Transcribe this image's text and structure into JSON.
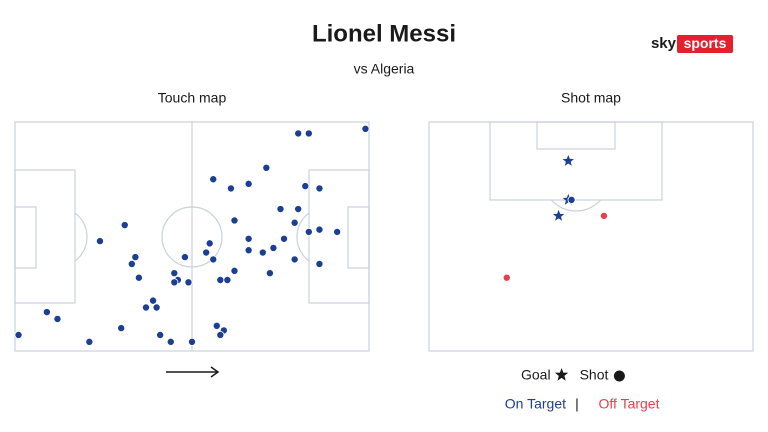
{
  "title": "Lionel Messi",
  "subtitle": "vs Algeria",
  "logo": {
    "brand": "sky",
    "product": "sports"
  },
  "chart_data": [
    {
      "type": "scatter",
      "title": "Touch map",
      "xlim": [
        0,
        100
      ],
      "ylim": [
        0,
        100
      ],
      "series": [
        {
          "name": null,
          "color": "#1c3f94",
          "x": [
            80,
            83,
            99,
            71,
            82,
            86,
            61,
            66,
            56,
            31,
            24,
            62,
            75,
            80,
            79,
            76,
            83,
            86,
            91,
            66,
            66,
            70,
            73,
            79,
            86,
            55,
            54,
            48,
            56,
            34,
            33,
            35,
            45,
            46,
            45,
            49,
            62,
            58,
            60,
            72,
            39,
            37,
            40,
            9,
            12,
            30,
            57,
            59,
            58,
            41,
            44,
            50,
            21,
            1
          ],
          "values": [
            95,
            95,
            97,
            80,
            72,
            71,
            71,
            73,
            75,
            55,
            48,
            57,
            62,
            62,
            56,
            49,
            52,
            53,
            52,
            49,
            44,
            43,
            45,
            40,
            38,
            47,
            43,
            41,
            40,
            41,
            38,
            32,
            34,
            31,
            30,
            30,
            35,
            31,
            31,
            34,
            22,
            19,
            19,
            17,
            14,
            10,
            11,
            9,
            7,
            7,
            4,
            4,
            4,
            7
          ]
        }
      ]
    },
    {
      "type": "scatter",
      "title": "Shot map",
      "xlim": [
        0,
        100
      ],
      "ylim": [
        100,
        0
      ],
      "legend_markers": [
        {
          "label": "Goal",
          "shape": "star"
        },
        {
          "label": "Shot",
          "shape": "circle"
        }
      ],
      "series": [
        {
          "name": "On Target",
          "color": "#1c3f94",
          "x": [
            43,
            43,
            44,
            40
          ],
          "values": [
            17,
            34,
            34,
            41
          ],
          "markers": [
            "star",
            "star",
            "circle",
            "star"
          ]
        },
        {
          "name": "Off Target",
          "color": "#e8404a",
          "x": [
            54,
            24
          ],
          "values": [
            41,
            68
          ],
          "markers": [
            "circle",
            "circle"
          ]
        }
      ]
    }
  ]
}
